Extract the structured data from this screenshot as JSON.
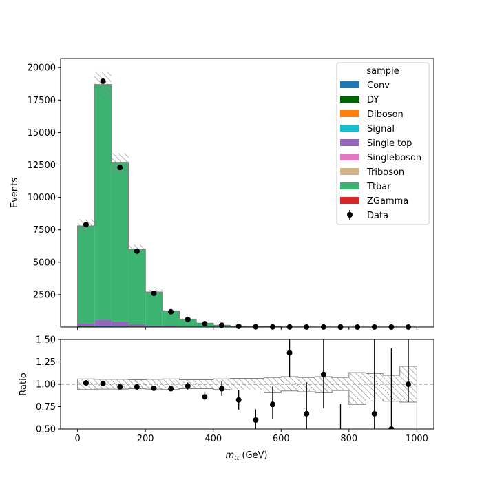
{
  "chart_data": {
    "type": "bar",
    "title": "",
    "xlabel": "m_tt (GeV)",
    "xlabel_main": "m",
    "xlabel_sub": "tt",
    "xlabel_unit": " (GeV)",
    "bin_edges": [
      0,
      50,
      100,
      150,
      200,
      250,
      300,
      350,
      400,
      450,
      500,
      550,
      600,
      650,
      700,
      750,
      800,
      850,
      900,
      950,
      1000
    ],
    "main": {
      "ylabel": "Events",
      "xlim": [
        -50,
        1050
      ],
      "ylim": [
        0,
        20700
      ],
      "xticks": [
        "0",
        "200",
        "400",
        "600",
        "800",
        "1000"
      ],
      "yticks": [
        "2500",
        "5000",
        "7500",
        "10000",
        "12500",
        "15000",
        "17500",
        "20000"
      ],
      "legend": {
        "title": "sample",
        "position": "top-right",
        "entries": [
          {
            "label": "Conv",
            "color": "#1f77b4"
          },
          {
            "label": "DY",
            "color": "#006400"
          },
          {
            "label": "Diboson",
            "color": "#ff7f0e"
          },
          {
            "label": "Signal",
            "color": "#17becf"
          },
          {
            "label": "Single top",
            "color": "#9467bd"
          },
          {
            "label": "Singleboson",
            "color": "#e377c2"
          },
          {
            "label": "Triboson",
            "color": "#d2b48c"
          },
          {
            "label": "Ttbar",
            "color": "#3cb371"
          },
          {
            "label": "ZGamma",
            "color": "#d62728"
          },
          {
            "label": "Data",
            "color": "#000000"
          }
        ]
      },
      "series": [
        {
          "name": "Conv",
          "color": "#1f77b4",
          "values": [
            30,
            60,
            45,
            25,
            12,
            6,
            3,
            2,
            1,
            1,
            0,
            0,
            0,
            0,
            0,
            0,
            0,
            0,
            0,
            0
          ]
        },
        {
          "name": "DY",
          "color": "#006400",
          "values": [
            30,
            50,
            35,
            18,
            8,
            4,
            2,
            1,
            1,
            0,
            0,
            0,
            0,
            0,
            0,
            0,
            0,
            0,
            0,
            0
          ]
        },
        {
          "name": "Single top",
          "color": "#9467bd",
          "values": [
            250,
            450,
            350,
            180,
            90,
            45,
            25,
            15,
            8,
            5,
            3,
            2,
            1,
            1,
            1,
            0,
            0,
            0,
            0,
            0
          ]
        },
        {
          "name": "Ttbar",
          "color": "#3cb371",
          "values": [
            7490,
            18140,
            12270,
            5777,
            2590,
            1190,
            570,
            282,
            130,
            64,
            32,
            16,
            8,
            5,
            3,
            2,
            1,
            1,
            1,
            0
          ]
        }
      ],
      "total": [
        7800,
        18700,
        12700,
        6000,
        2700,
        1245,
        600,
        300,
        140,
        70,
        35,
        18,
        9,
        6,
        4,
        2,
        1,
        1,
        1,
        0
      ],
      "unc_low": [
        7300,
        17600,
        11900,
        5700,
        2550,
        1170,
        570,
        285,
        130,
        65,
        32,
        16,
        8,
        5,
        3,
        2,
        1,
        1,
        1,
        0
      ],
      "unc_high": [
        8300,
        19700,
        13400,
        6350,
        2900,
        1320,
        640,
        320,
        150,
        75,
        38,
        20,
        10,
        7,
        5,
        3,
        2,
        2,
        1,
        0
      ],
      "data": {
        "name": "Data",
        "x": [
          25,
          75,
          125,
          175,
          225,
          275,
          325,
          375,
          425,
          475,
          525,
          575,
          625,
          675,
          725,
          775,
          825,
          875,
          925,
          975
        ],
        "y": [
          7900,
          18950,
          12300,
          5850,
          2600,
          1180,
          590,
          260,
          140,
          60,
          20,
          12,
          12,
          4,
          4,
          0,
          0,
          1,
          0,
          1
        ]
      }
    },
    "ratio": {
      "ylabel": "Ratio",
      "ylim": [
        0.5,
        1.5
      ],
      "xlim": [
        -50,
        1050
      ],
      "yticks": [
        "0.50",
        "0.75",
        "1.00",
        "1.25",
        "1.50"
      ],
      "reference_line": 1.0,
      "band_low": [
        0.94,
        0.945,
        0.945,
        0.95,
        0.945,
        0.94,
        0.95,
        0.95,
        0.94,
        0.935,
        0.935,
        0.905,
        0.925,
        0.915,
        0.905,
        0.93,
        0.775,
        0.835,
        0.81,
        0.8
      ],
      "band_high": [
        1.06,
        1.055,
        1.055,
        1.05,
        1.055,
        1.06,
        1.05,
        1.05,
        1.06,
        1.065,
        1.065,
        1.075,
        1.085,
        1.075,
        1.085,
        1.075,
        1.13,
        1.12,
        1.1,
        1.2
      ],
      "points": {
        "x": [
          25,
          75,
          125,
          175,
          225,
          275,
          325,
          375,
          425,
          475,
          525,
          575,
          625,
          675,
          725,
          775,
          875,
          925,
          975
        ],
        "y": [
          1.015,
          1.01,
          0.97,
          0.97,
          0.955,
          0.95,
          0.98,
          0.86,
          0.95,
          0.825,
          0.6,
          0.775,
          1.35,
          0.67,
          1.11,
          0.4,
          0.67,
          0.5,
          1.0
        ],
        "err_low": [
          0.02,
          0.01,
          0.015,
          0.02,
          0.02,
          0.03,
          0.04,
          0.05,
          0.08,
          0.11,
          0.12,
          0.16,
          0.27,
          0.25,
          0.38,
          0.38,
          0.67,
          0.6,
          0.2
        ],
        "err_high": [
          0.02,
          0.01,
          0.015,
          0.02,
          0.02,
          0.03,
          0.04,
          0.05,
          0.08,
          0.11,
          0.12,
          0.2,
          0.3,
          0.35,
          0.4,
          0.38,
          0.9,
          0.9,
          0.9
        ]
      }
    }
  }
}
